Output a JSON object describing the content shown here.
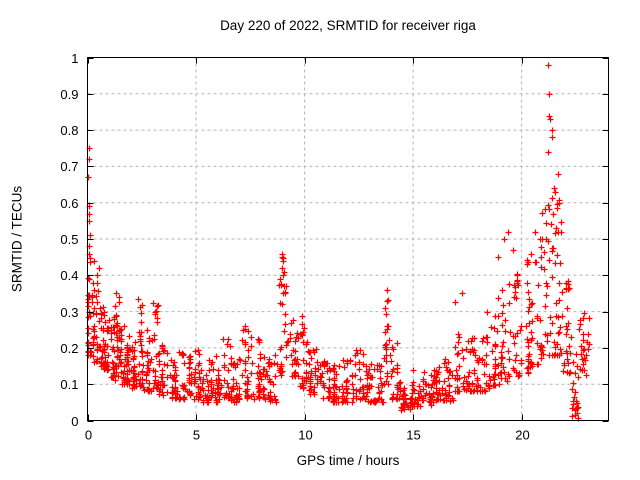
{
  "chart_data": {
    "type": "scatter",
    "title": "Day 220 of 2022, SRMTID for receiver riga",
    "xlabel": "GPS time / hours",
    "ylabel": "SRMTID / TECUs",
    "xlim": [
      0,
      24
    ],
    "ylim": [
      0,
      1
    ],
    "xtick_values": [
      0,
      5,
      10,
      15,
      20
    ],
    "xtick_labels": [
      "0",
      "5",
      "10",
      "15",
      "20"
    ],
    "ytick_values": [
      0,
      0.1,
      0.2,
      0.3,
      0.4,
      0.5,
      0.6,
      0.7,
      0.8,
      0.9,
      1
    ],
    "ytick_labels": [
      "0",
      "0.1",
      "0.2",
      "0.3",
      "0.4",
      "0.5",
      "0.6",
      "0.7",
      "0.8",
      "0.9",
      "1"
    ],
    "grid": true,
    "legend": "none",
    "marker": "plus",
    "marker_color": "#ff0000",
    "grid_color": "#b4b4b4",
    "axis_color": "#000000",
    "series_name": "SRMTID",
    "band_format": [
      "hour_start",
      "hour_end",
      "value_low",
      "value_high",
      "num_points"
    ],
    "bands": [
      [
        0.0,
        0.25,
        0.17,
        0.45,
        30
      ],
      [
        0.25,
        0.5,
        0.16,
        0.38,
        26
      ],
      [
        0.5,
        0.75,
        0.15,
        0.34,
        26
      ],
      [
        0.75,
        1.0,
        0.14,
        0.31,
        26
      ],
      [
        1.0,
        1.25,
        0.12,
        0.29,
        26
      ],
      [
        1.25,
        1.5,
        0.11,
        0.36,
        26
      ],
      [
        1.5,
        1.75,
        0.1,
        0.27,
        24
      ],
      [
        1.75,
        2.0,
        0.1,
        0.25,
        24
      ],
      [
        2.0,
        2.25,
        0.09,
        0.23,
        24
      ],
      [
        2.25,
        2.6,
        0.09,
        0.37,
        28
      ],
      [
        2.6,
        3.0,
        0.08,
        0.25,
        26
      ],
      [
        3.0,
        3.3,
        0.08,
        0.33,
        24
      ],
      [
        3.3,
        3.7,
        0.07,
        0.21,
        26
      ],
      [
        3.7,
        4.2,
        0.06,
        0.18,
        30
      ],
      [
        4.2,
        4.7,
        0.06,
        0.19,
        30
      ],
      [
        4.7,
        5.2,
        0.06,
        0.22,
        30
      ],
      [
        5.2,
        5.7,
        0.05,
        0.19,
        30
      ],
      [
        5.7,
        6.2,
        0.05,
        0.18,
        30
      ],
      [
        6.2,
        6.6,
        0.06,
        0.32,
        24
      ],
      [
        6.6,
        7.1,
        0.05,
        0.18,
        30
      ],
      [
        7.1,
        7.6,
        0.06,
        0.27,
        30
      ],
      [
        7.6,
        8.1,
        0.06,
        0.23,
        30
      ],
      [
        8.1,
        8.7,
        0.05,
        0.18,
        32
      ],
      [
        8.7,
        9.2,
        0.12,
        0.46,
        28
      ],
      [
        9.2,
        9.7,
        0.12,
        0.3,
        28
      ],
      [
        9.7,
        10.2,
        0.09,
        0.29,
        28
      ],
      [
        10.2,
        10.7,
        0.07,
        0.2,
        28
      ],
      [
        10.7,
        11.2,
        0.06,
        0.17,
        28
      ],
      [
        11.2,
        11.7,
        0.05,
        0.16,
        28
      ],
      [
        11.7,
        12.2,
        0.05,
        0.18,
        28
      ],
      [
        12.2,
        12.7,
        0.06,
        0.2,
        28
      ],
      [
        12.7,
        13.2,
        0.05,
        0.16,
        28
      ],
      [
        13.2,
        13.6,
        0.05,
        0.16,
        24
      ],
      [
        13.6,
        14.0,
        0.1,
        0.36,
        24
      ],
      [
        14.0,
        14.4,
        0.06,
        0.22,
        24
      ],
      [
        14.4,
        14.9,
        0.03,
        0.12,
        28
      ],
      [
        14.9,
        15.4,
        0.04,
        0.14,
        28
      ],
      [
        15.4,
        15.9,
        0.04,
        0.14,
        28
      ],
      [
        15.9,
        16.4,
        0.05,
        0.15,
        28
      ],
      [
        16.4,
        16.9,
        0.05,
        0.17,
        28
      ],
      [
        16.9,
        17.4,
        0.08,
        0.33,
        28
      ],
      [
        17.4,
        17.9,
        0.08,
        0.26,
        28
      ],
      [
        17.9,
        18.4,
        0.08,
        0.24,
        28
      ],
      [
        18.4,
        18.9,
        0.09,
        0.31,
        28
      ],
      [
        18.9,
        19.4,
        0.1,
        0.4,
        28
      ],
      [
        19.4,
        19.9,
        0.12,
        0.42,
        28
      ],
      [
        19.9,
        20.4,
        0.13,
        0.45,
        28
      ],
      [
        20.4,
        20.9,
        0.15,
        0.48,
        28
      ],
      [
        20.9,
        21.4,
        0.18,
        0.62,
        30
      ],
      [
        21.4,
        21.9,
        0.18,
        0.62,
        30
      ],
      [
        21.9,
        22.3,
        0.13,
        0.42,
        26
      ],
      [
        22.3,
        22.6,
        0.005,
        0.22,
        22
      ],
      [
        22.6,
        23.1,
        0.12,
        0.3,
        26
      ]
    ],
    "outliers": [
      [
        0.05,
        0.75
      ],
      [
        0.06,
        0.72
      ],
      [
        0.03,
        0.67
      ],
      [
        0.05,
        0.59
      ],
      [
        0.08,
        0.57
      ],
      [
        0.06,
        0.55
      ],
      [
        0.1,
        0.51
      ],
      [
        0.07,
        0.48
      ],
      [
        0.09,
        0.46
      ],
      [
        0.3,
        0.44
      ],
      [
        0.55,
        0.42
      ],
      [
        0.45,
        0.4
      ],
      [
        8.95,
        0.46
      ],
      [
        8.97,
        0.45
      ],
      [
        9.0,
        0.44
      ],
      [
        9.02,
        0.4
      ],
      [
        9.05,
        0.37
      ],
      [
        9.1,
        0.35
      ],
      [
        13.78,
        0.36
      ],
      [
        13.8,
        0.33
      ],
      [
        17.25,
        0.35
      ],
      [
        18.9,
        0.45
      ],
      [
        19.2,
        0.5
      ],
      [
        19.35,
        0.52
      ],
      [
        19.6,
        0.47
      ],
      [
        20.6,
        0.52
      ],
      [
        20.85,
        0.5
      ],
      [
        21.2,
        0.98
      ],
      [
        21.24,
        0.9
      ],
      [
        21.28,
        0.84
      ],
      [
        21.3,
        0.83
      ],
      [
        21.38,
        0.8
      ],
      [
        21.4,
        0.78
      ],
      [
        21.22,
        0.74
      ],
      [
        21.68,
        0.68
      ],
      [
        21.5,
        0.64
      ],
      [
        21.54,
        0.63
      ],
      [
        21.7,
        0.6
      ],
      [
        21.45,
        0.57
      ],
      [
        21.35,
        0.54
      ],
      [
        21.6,
        0.53
      ],
      [
        21.8,
        0.52
      ],
      [
        20.95,
        0.5
      ],
      [
        21.1,
        0.5
      ]
    ]
  }
}
